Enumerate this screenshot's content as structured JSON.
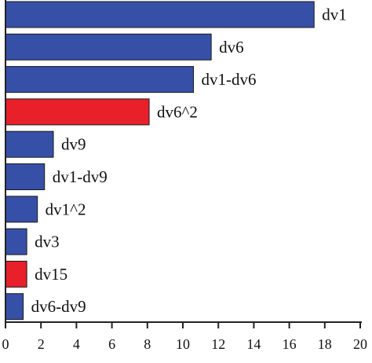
{
  "chart_data": {
    "type": "bar",
    "orientation": "horizontal",
    "title": "",
    "xlabel": "",
    "ylabel": "",
    "xlim": [
      0,
      20
    ],
    "xticks": [
      0,
      2,
      4,
      6,
      8,
      10,
      12,
      14,
      16,
      18,
      20
    ],
    "grid": false,
    "bars": [
      {
        "label": "dv1",
        "value": 17.4,
        "color": "#3650a8"
      },
      {
        "label": "dv6",
        "value": 11.6,
        "color": "#3650a8"
      },
      {
        "label": "dv1-dv6",
        "value": 10.6,
        "color": "#3650a8"
      },
      {
        "label": "dv6^2",
        "value": 8.1,
        "color": "#e8202a"
      },
      {
        "label": "dv9",
        "value": 2.7,
        "color": "#3650a8"
      },
      {
        "label": "dv1-dv9",
        "value": 2.2,
        "color": "#3650a8"
      },
      {
        "label": "dv1^2",
        "value": 1.8,
        "color": "#3650a8"
      },
      {
        "label": "dv3",
        "value": 1.2,
        "color": "#3650a8"
      },
      {
        "label": "dv15",
        "value": 1.2,
        "color": "#e8202a"
      },
      {
        "label": "dv6-dv9",
        "value": 1.0,
        "color": "#3650a8"
      }
    ]
  }
}
